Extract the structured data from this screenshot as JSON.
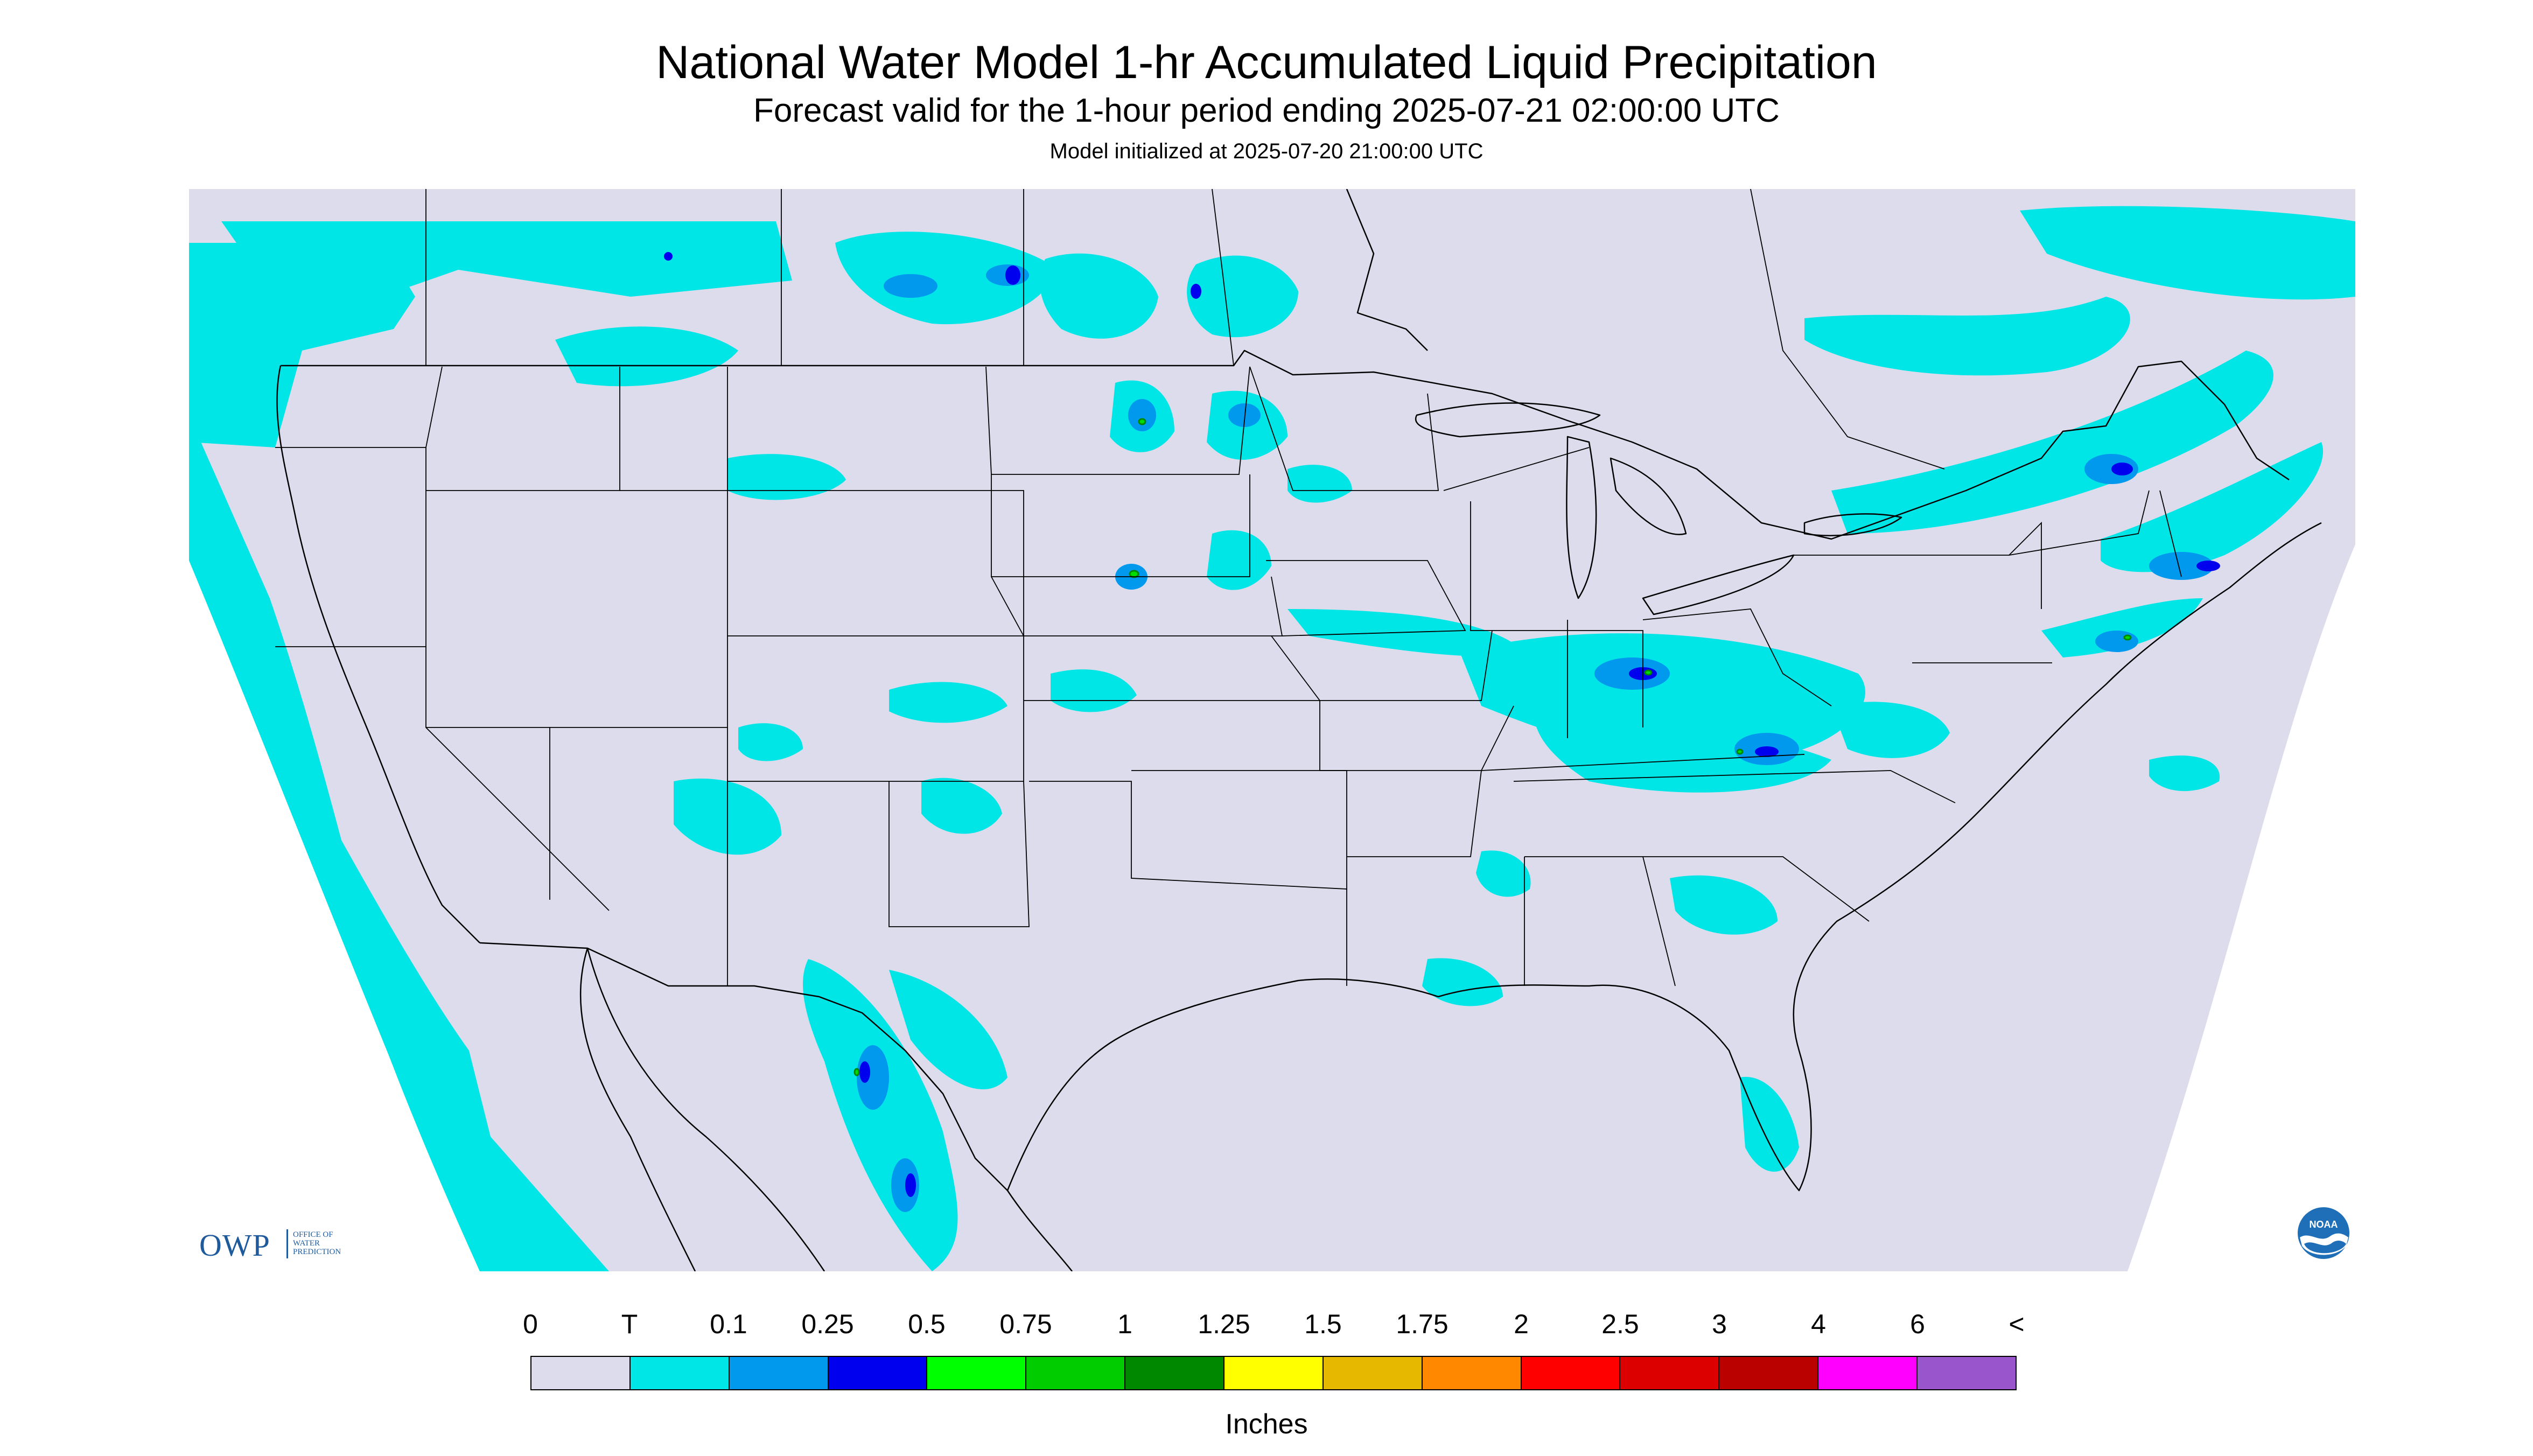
{
  "header": {
    "title": "National Water Model 1-hr Accumulated Liquid Precipitation",
    "subtitle": "Forecast valid for the 1-hour period ending 2025-07-21 02:00:00 UTC",
    "init_line": "Model initialized at 2025-07-20 21:00:00 UTC"
  },
  "logos": {
    "owp": {
      "wordmark": "OWP",
      "lines": [
        "OFFICE OF",
        "WATER",
        "PREDICTION"
      ],
      "color": "#1f5b9c"
    },
    "noaa": {
      "text": "NOAA",
      "color": "#1e6fb8"
    }
  },
  "map": {
    "background": "#dcdcec",
    "outside": "#ffffff",
    "boundary_color": "#000000",
    "precip_colors": {
      "trace": "#00e6e6",
      "light": "#0099ee",
      "moderate": "#0000ee",
      "heavy": "#00dd00"
    }
  },
  "legend": {
    "ticks": [
      "0",
      "T",
      "0.1",
      "0.25",
      "0.5",
      "0.75",
      "1",
      "1.25",
      "1.5",
      "1.75",
      "2",
      "2.5",
      "3",
      "4",
      "6",
      "<"
    ],
    "colors": [
      "#dcdcec",
      "#00e6e6",
      "#0099ee",
      "#0000ee",
      "#00ff00",
      "#00cc00",
      "#008800",
      "#ffff00",
      "#e6b800",
      "#ff8800",
      "#ff0000",
      "#dd0000",
      "#bb0000",
      "#ff00ff",
      "#9955cc"
    ],
    "units": "Inches"
  }
}
